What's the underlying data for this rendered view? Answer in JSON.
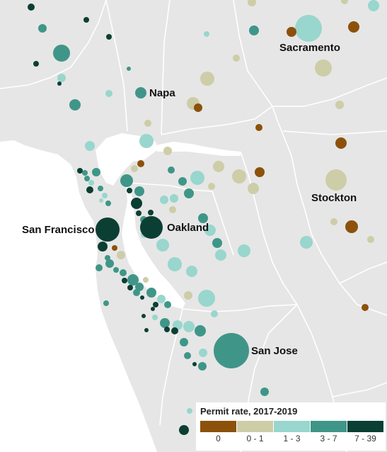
{
  "map": {
    "city_labels": [
      "Sacramento",
      "Napa",
      "Stockton",
      "San Francisco",
      "Oakland",
      "San Jose"
    ],
    "legend": {
      "title": "Permit rate, 2017-2019",
      "bins": [
        {
          "label": "0",
          "color": "#8c510a"
        },
        {
          "label": "0 - 1",
          "color": "#cdcda8"
        },
        {
          "label": "1 - 3",
          "color": "#99d6cd"
        },
        {
          "label": "3 - 7",
          "color": "#3f9688"
        },
        {
          "label": "7 - 39",
          "color": "#0b3f34"
        }
      ]
    },
    "colors": {
      "land": "#e6e6e6",
      "water": "#ffffff",
      "county_border": "#ffffff"
    },
    "permit_rate_bins_by_marker": {
      "0": 14,
      "0 - 1": 30,
      "1 - 3": 49,
      "3 - 7": 41,
      "7 - 39": 26
    }
  }
}
